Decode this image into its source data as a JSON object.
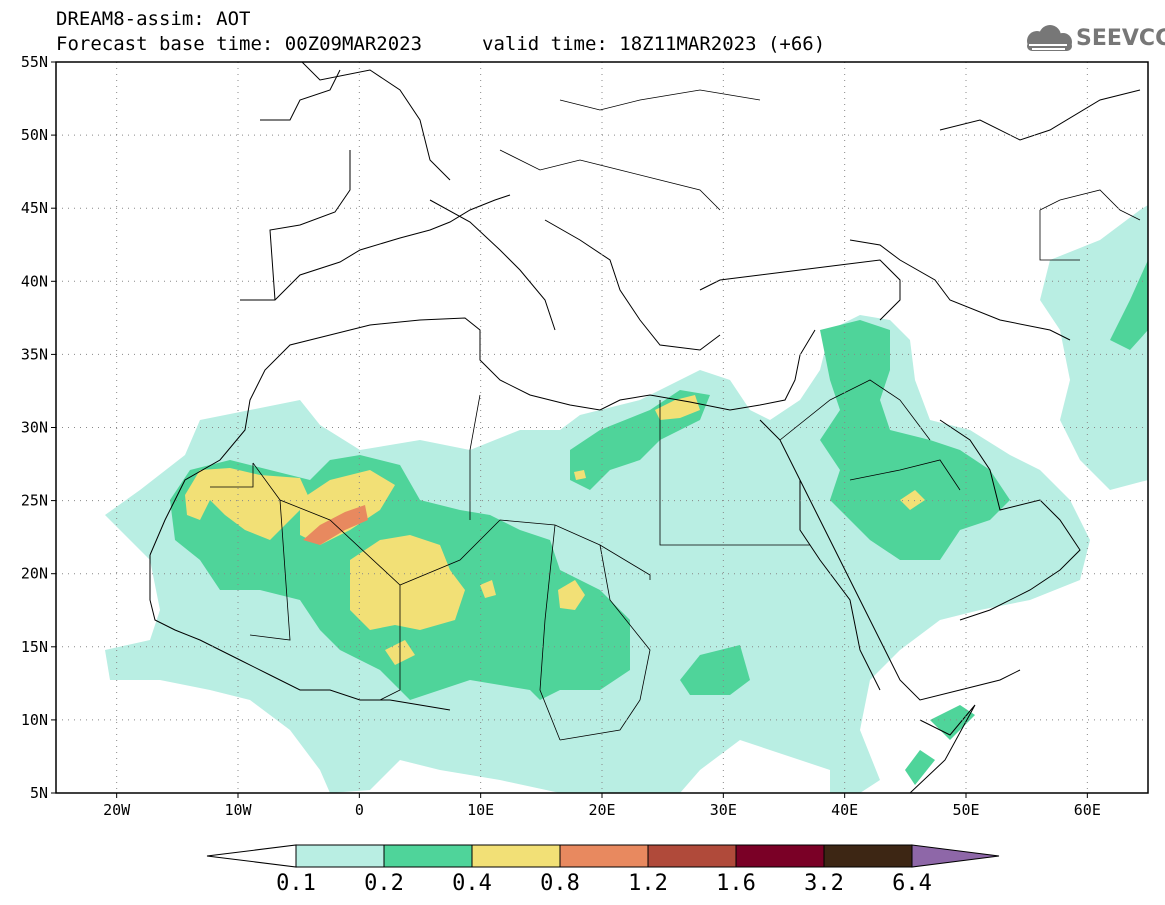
{
  "header": {
    "line1": "DREAM8-assim: AOT",
    "line2": "Forecast base time: 00Z09MAR2023",
    "valid": "valid time: 18Z11MAR2023 (+66)",
    "logo": "SEEVCCC"
  },
  "map": {
    "lon_range": [
      -25,
      65
    ],
    "lat_range": [
      5,
      55
    ],
    "lat_labels": [
      "55N",
      "50N",
      "45N",
      "40N",
      "35N",
      "30N",
      "25N",
      "20N",
      "15N",
      "10N",
      "5N"
    ],
    "lat_values": [
      55,
      50,
      45,
      40,
      35,
      30,
      25,
      20,
      15,
      10,
      5
    ],
    "lon_labels": [
      "20W",
      "10W",
      "0",
      "10E",
      "20E",
      "30E",
      "40E",
      "50E",
      "60E"
    ],
    "lon_values": [
      -20,
      -10,
      0,
      10,
      20,
      30,
      40,
      50,
      60
    ],
    "field_colors": {
      "c01": "#b9eee3",
      "c02": "#4fd49a",
      "c04": "#f2e076",
      "c08": "#e8895f",
      "c12": "#b04a3a"
    }
  },
  "colorbar": {
    "labels": [
      "0.1",
      "0.2",
      "0.4",
      "0.8",
      "1.2",
      "1.6",
      "3.2",
      "6.4"
    ],
    "colors": [
      "#ffffff",
      "#b9eee3",
      "#4fd49a",
      "#f2e076",
      "#e8895f",
      "#b04a3a",
      "#7a0026",
      "#3d2614",
      "#8e67a8"
    ]
  }
}
